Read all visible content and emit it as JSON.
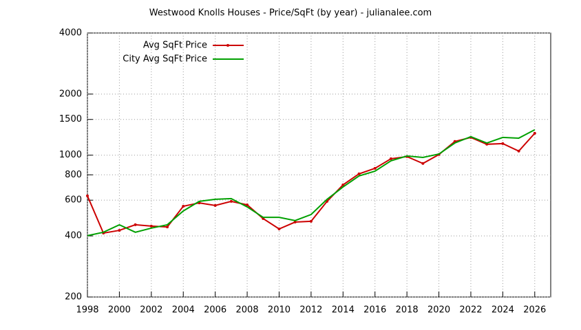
{
  "chart_data": {
    "type": "line",
    "title": "Westwood Knolls Houses - Price/SqFt (by year) - julianalee.com",
    "x": [
      1998,
      1999,
      2000,
      2001,
      2002,
      2003,
      2004,
      2005,
      2006,
      2007,
      2008,
      2009,
      2010,
      2011,
      2012,
      2013,
      2014,
      2015,
      2016,
      2017,
      2018,
      2019,
      2020,
      2021,
      2022,
      2023,
      2024,
      2025,
      2026
    ],
    "series": [
      {
        "name": "Avg SqFt Price",
        "color": "#cc0000",
        "markers": true,
        "values": [
          630,
          413,
          426,
          454,
          447,
          443,
          560,
          582,
          565,
          592,
          569,
          487,
          433,
          468,
          472,
          592,
          714,
          809,
          861,
          960,
          984,
          910,
          1007,
          1168,
          1223,
          1132,
          1140,
          1047,
          1282
        ]
      },
      {
        "name": "City Avg SqFt Price",
        "color": "#00a000",
        "markers": false,
        "values": [
          401,
          417,
          454,
          417,
          437,
          454,
          531,
          592,
          606,
          611,
          556,
          494,
          494,
          476,
          510,
          606,
          697,
          790,
          834,
          938,
          991,
          975,
          1013,
          1148,
          1233,
          1148,
          1223,
          1213,
          1334
        ]
      }
    ],
    "xlim": [
      1998,
      2027
    ],
    "xticks": [
      1998,
      2000,
      2002,
      2004,
      2006,
      2008,
      2010,
      2012,
      2014,
      2016,
      2018,
      2020,
      2022,
      2024,
      2026
    ],
    "ylim": [
      200,
      4000
    ],
    "yticks": [
      200,
      400,
      600,
      800,
      1000,
      1500,
      2000,
      4000
    ],
    "log_y": true,
    "grid": true,
    "legend": "top-left"
  }
}
